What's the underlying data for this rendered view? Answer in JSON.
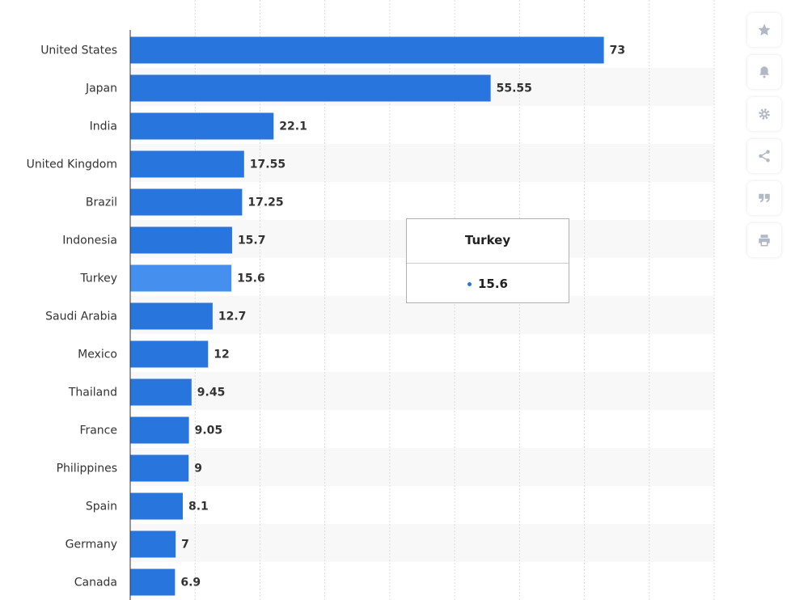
{
  "chart_data": {
    "type": "bar",
    "orientation": "horizontal",
    "categories": [
      "United States",
      "Japan",
      "India",
      "United Kingdom",
      "Brazil",
      "Indonesia",
      "Turkey",
      "Saudi Arabia",
      "Mexico",
      "Thailand",
      "France",
      "Philippines",
      "Spain",
      "Germany",
      "Canada"
    ],
    "values": [
      73,
      55.55,
      22.1,
      17.55,
      17.25,
      15.7,
      15.6,
      12.7,
      12,
      9.45,
      9.05,
      9,
      8.1,
      7,
      6.9
    ],
    "value_labels": [
      "73",
      "55.55",
      "22.1",
      "17.55",
      "17.25",
      "15.7",
      "15.6",
      "12.7",
      "12",
      "9.45",
      "9.05",
      "9",
      "8.1",
      "7",
      "6.9"
    ],
    "xlim": [
      0,
      90
    ],
    "grid": true,
    "highlighted_index": 6,
    "colors": {
      "bar": "#2876dd",
      "bar_highlight": "#4590ef",
      "band": "#f8f8f8",
      "grid": "#dcdcdc",
      "axis": "#333333"
    }
  },
  "tooltip": {
    "title": "Turkey",
    "value": "15.6"
  },
  "toolbar": {
    "icons": [
      "star-icon",
      "bell-icon",
      "gear-icon",
      "share-icon",
      "quote-icon",
      "print-icon"
    ]
  }
}
